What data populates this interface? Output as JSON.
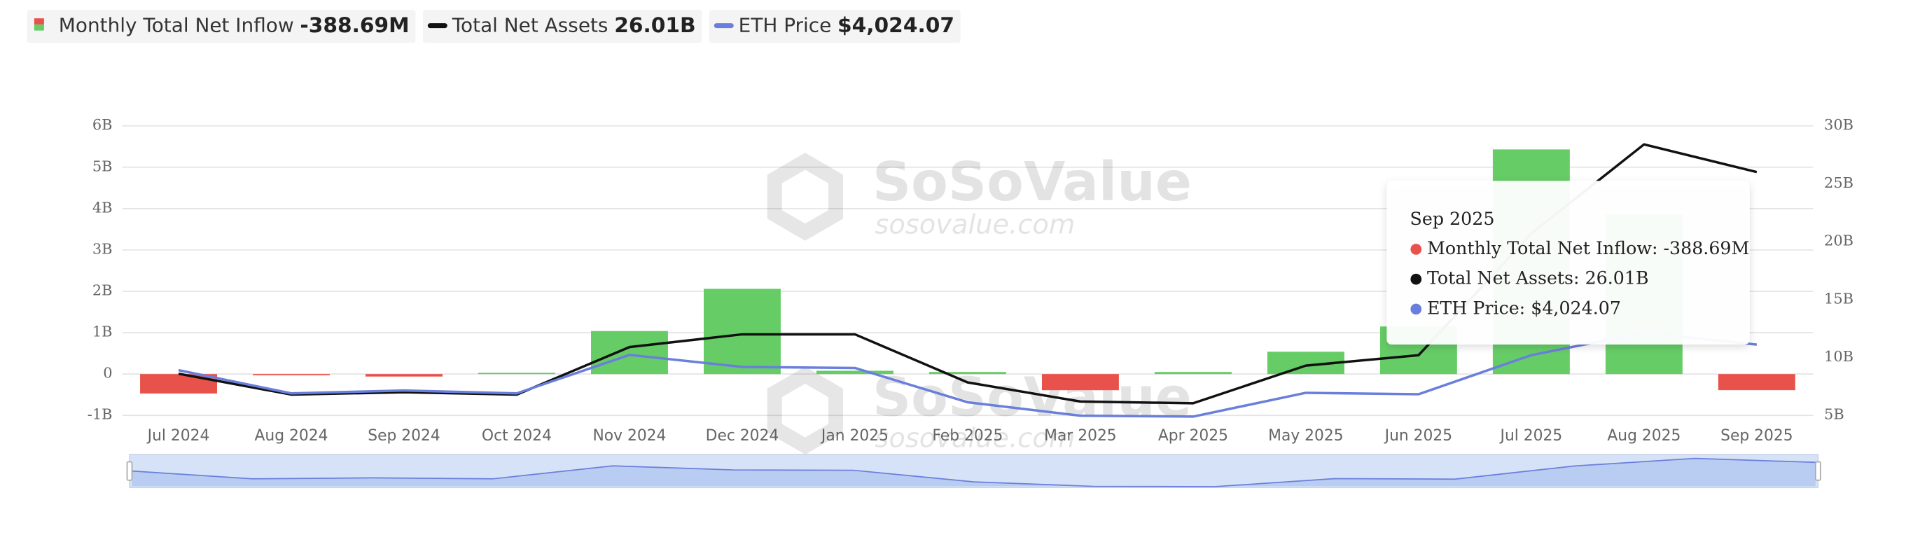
{
  "chart_data": {
    "type": "bar-line",
    "categories": [
      "Jul 2024",
      "Aug 2024",
      "Sep 2024",
      "Oct 2024",
      "Nov 2024",
      "Dec 2024",
      "Jan 2025",
      "Feb 2025",
      "Mar 2025",
      "Apr 2025",
      "May 2025",
      "Jun 2025",
      "Jul 2025",
      "Aug 2025",
      "Sep 2025"
    ],
    "series": [
      {
        "name": "Monthly Total Net Inflow",
        "type": "bar",
        "color": "#66cc66",
        "negative_color": "#e8524a",
        "axis": "y",
        "values": [
          -0.47,
          -0.01,
          -0.06,
          0.03,
          1.04,
          2.06,
          0.08,
          0.05,
          -0.39,
          0.05,
          0.54,
          1.15,
          5.43,
          3.87,
          -0.38869
        ]
      },
      {
        "name": "Total Net Assets",
        "type": "line",
        "color": "#111111",
        "axis": "y2",
        "values": [
          8.6,
          6.8,
          7.0,
          6.8,
          10.9,
          12.0,
          12.0,
          7.85,
          6.2,
          6.05,
          9.3,
          10.2,
          20.7,
          28.4,
          26.01
        ]
      },
      {
        "name": "ETH Price",
        "type": "line",
        "color": "#6a7fdc",
        "axis": "y3",
        "values": [
          3232,
          2513,
          2602,
          2513,
          3705,
          3332,
          3300,
          2237,
          1822,
          1794,
          2530,
          2486,
          3697,
          4391,
          4024.07
        ]
      }
    ],
    "legend_values": [
      "-388.69M",
      "26.01B",
      "$4,024.07"
    ],
    "ylim": [
      -1,
      6
    ],
    "yticks": [
      {
        "value": -1,
        "label": "-1B"
      },
      {
        "value": 0,
        "label": "0"
      },
      {
        "value": 1,
        "label": "1B"
      },
      {
        "value": 2,
        "label": "2B"
      },
      {
        "value": 3,
        "label": "3B"
      },
      {
        "value": 4,
        "label": "4B"
      },
      {
        "value": 5,
        "label": "5B"
      },
      {
        "value": 6,
        "label": "6B"
      }
    ],
    "y2lim": [
      5,
      30
    ],
    "y2ticks": [
      {
        "value": 5,
        "label": "5B"
      },
      {
        "value": 10,
        "label": "10B"
      },
      {
        "value": 15,
        "label": "15B"
      },
      {
        "value": 20,
        "label": "20B"
      },
      {
        "value": 25,
        "label": "25B"
      },
      {
        "value": 30,
        "label": "30B"
      }
    ],
    "y3lim": [
      1830,
      10800
    ],
    "grid": true,
    "tooltip": {
      "title": "Sep 2025",
      "items": [
        {
          "label": "Monthly Total Net Inflow: -388.69M",
          "color": "#e8524a"
        },
        {
          "label": "Total Net Assets: 26.01B",
          "color": "#111111"
        },
        {
          "label": "ETH Price: $4,024.07",
          "color": "#6a7fdc"
        }
      ]
    },
    "watermark": {
      "brand": "SoSoValue",
      "site": "sosovalue.com"
    }
  }
}
